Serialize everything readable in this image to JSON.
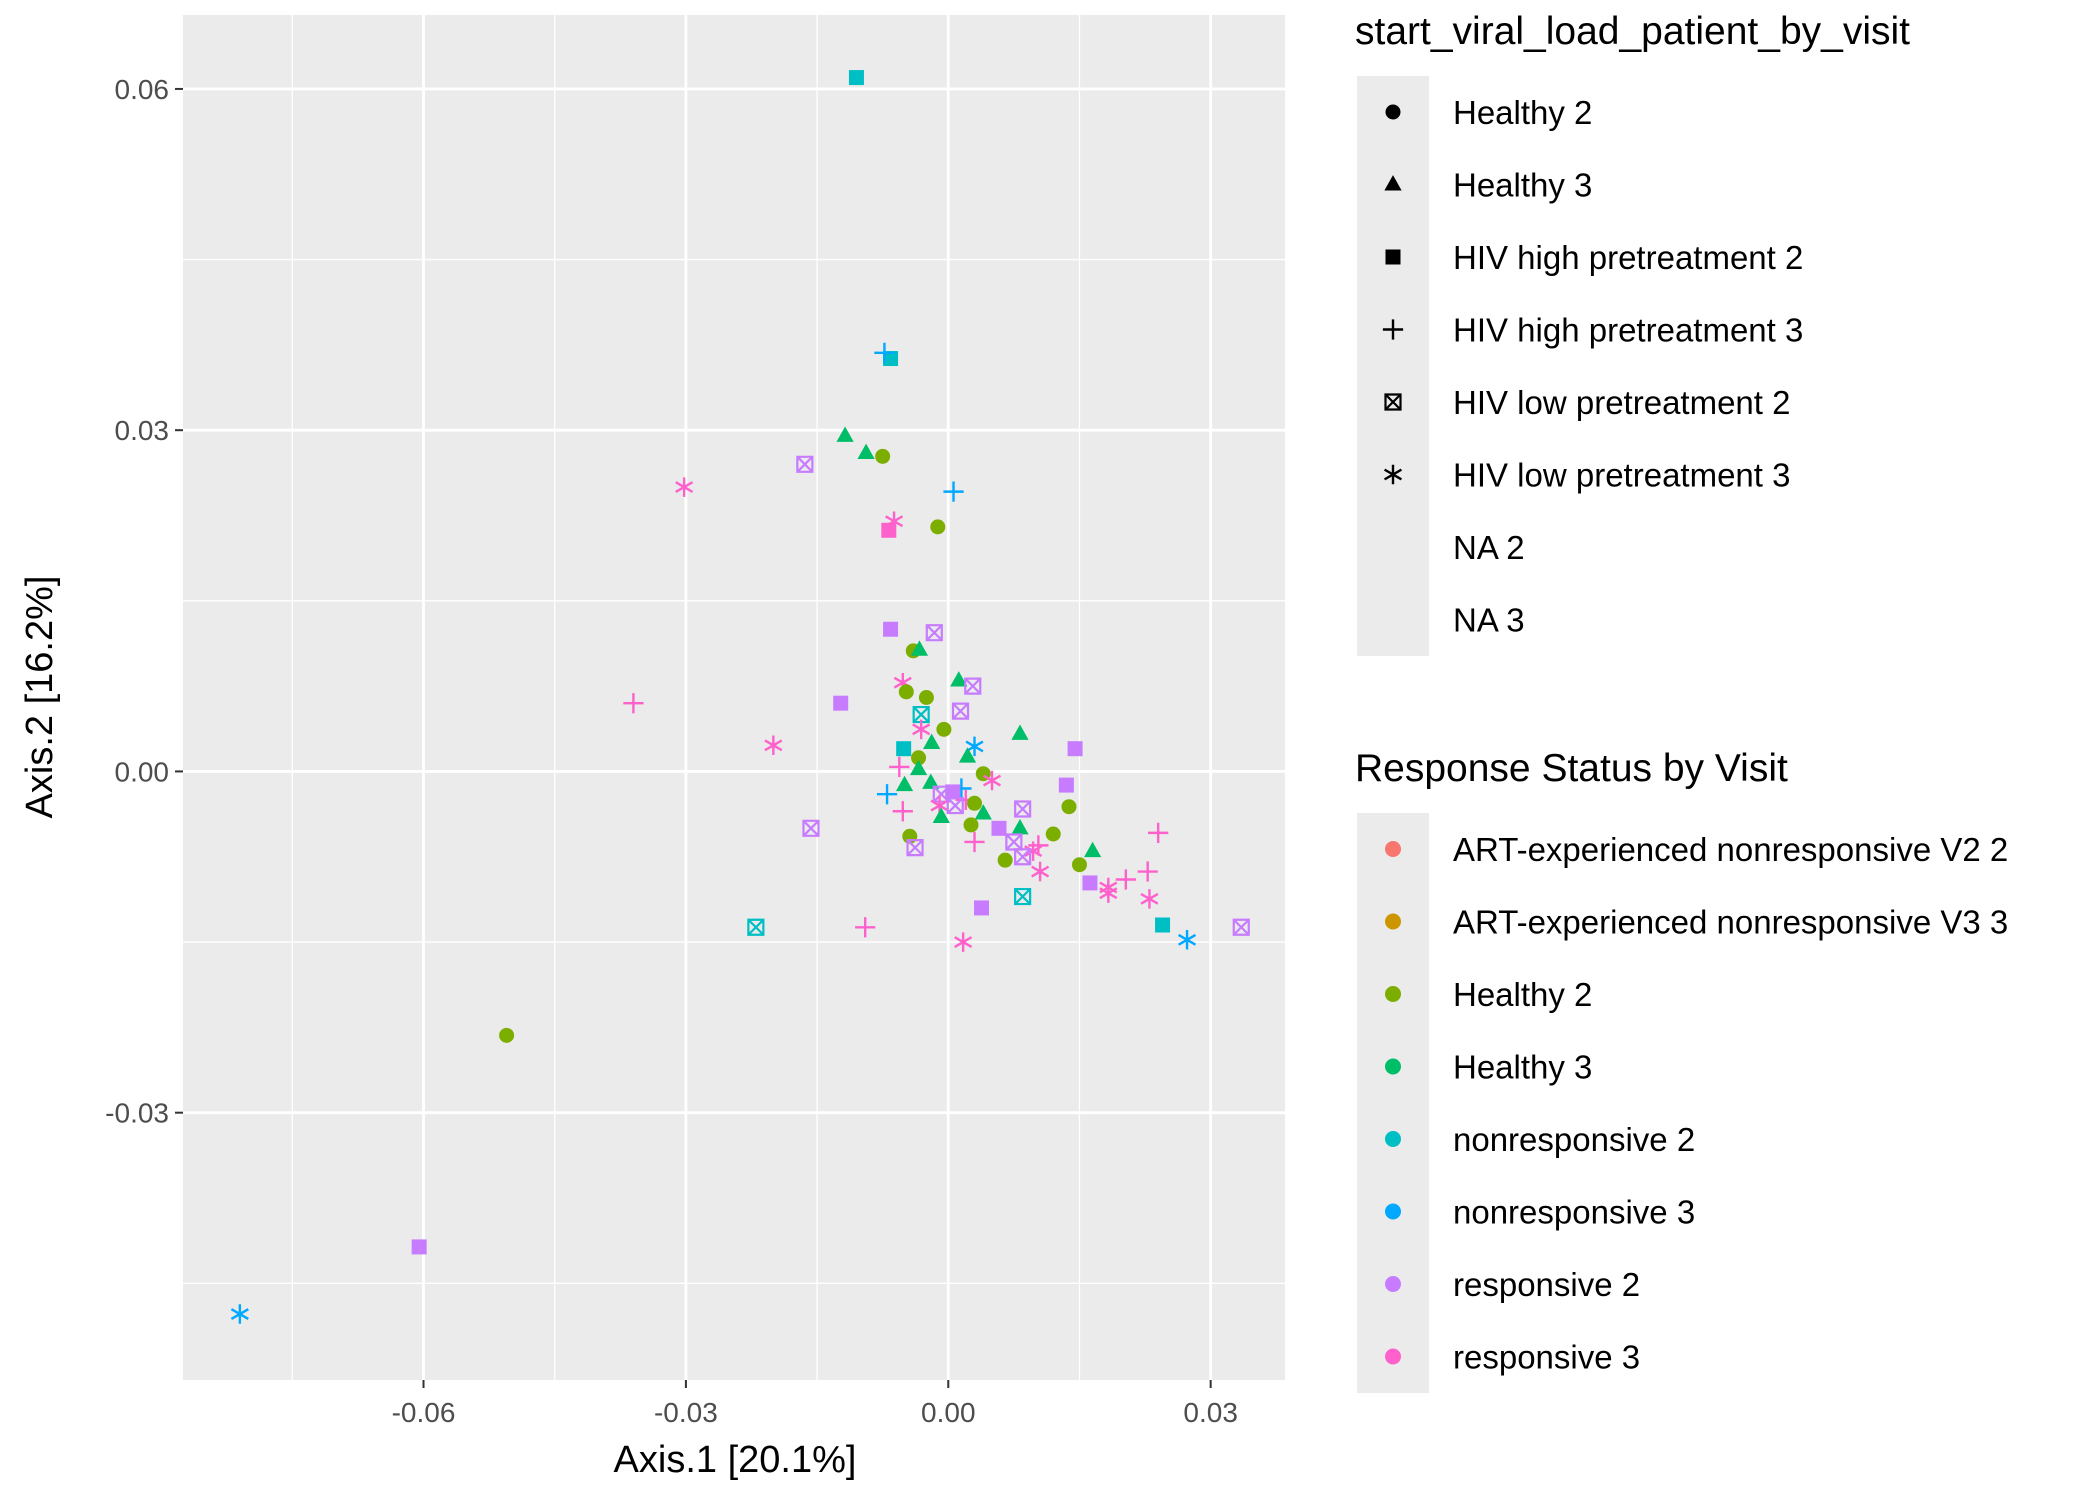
{
  "chart_data": {
    "type": "scatter",
    "title": "",
    "xlabel": "Axis.1   [20.1%]",
    "ylabel": "Axis.2   [16.2%]",
    "xlim": [
      -0.0875,
      0.0385
    ],
    "ylim": [
      -0.0535,
      0.0665
    ],
    "x_ticks": [
      -0.06,
      -0.03,
      0.0,
      0.03
    ],
    "x_tick_labels": [
      "-0.06",
      "-0.03",
      "0.00",
      "0.03"
    ],
    "y_ticks": [
      0.06,
      0.03,
      0.0,
      -0.03
    ],
    "y_tick_labels": [
      "0.06",
      "0.03",
      "0.00",
      "-0.03"
    ],
    "grid": true,
    "legend_placement": "right",
    "colors": {
      "ART-experienced nonresponsive V2 2": "#F8766D",
      "ART-experienced nonresponsive V3 3": "#CD9600",
      "Healthy 2": "#7CAE00",
      "Healthy 3": "#00BE67",
      "nonresponsive 2": "#00BFC4",
      "nonresponsive 3": "#00A9FF",
      "responsive 2": "#C77CFF",
      "responsive 3": "#FF61CC"
    },
    "shape_legend": {
      "title": "start_viral_load_patient_by_visit",
      "items": [
        {
          "label": "Healthy 2",
          "shape": "circle"
        },
        {
          "label": "Healthy 3",
          "shape": "triangle"
        },
        {
          "label": "HIV high pretreatment 2",
          "shape": "square"
        },
        {
          "label": "HIV high pretreatment 3",
          "shape": "plus"
        },
        {
          "label": "HIV low pretreatment 2",
          "shape": "boxx"
        },
        {
          "label": "HIV low pretreatment 3",
          "shape": "star"
        },
        {
          "label": "NA 2",
          "shape": "none"
        },
        {
          "label": "NA 3",
          "shape": "none"
        }
      ]
    },
    "color_legend": {
      "title": "Response Status by Visit",
      "items": [
        "ART-experienced nonresponsive V2 2",
        "ART-experienced nonresponsive V3 3",
        "Healthy 2",
        "Healthy 3",
        "nonresponsive 2",
        "nonresponsive 3",
        "responsive 2",
        "responsive 3"
      ]
    },
    "points": [
      {
        "x": -0.0105,
        "y": 0.061,
        "shape": "square",
        "group": "nonresponsive 2"
      },
      {
        "x": -0.0066,
        "y": 0.0363,
        "shape": "square",
        "group": "nonresponsive 2"
      },
      {
        "x": -0.0073,
        "y": 0.0368,
        "shape": "plus",
        "group": "nonresponsive 3"
      },
      {
        "x": 0.0006,
        "y": 0.0246,
        "shape": "plus",
        "group": "nonresponsive 3"
      },
      {
        "x": -0.0118,
        "y": 0.0295,
        "shape": "triangle",
        "group": "Healthy 3"
      },
      {
        "x": -0.0094,
        "y": 0.028,
        "shape": "triangle",
        "group": "Healthy 3"
      },
      {
        "x": -0.0075,
        "y": 0.0277,
        "shape": "circle",
        "group": "Healthy 2"
      },
      {
        "x": -0.0012,
        "y": 0.0215,
        "shape": "circle",
        "group": "Healthy 2"
      },
      {
        "x": -0.0164,
        "y": 0.027,
        "shape": "boxx",
        "group": "responsive 2"
      },
      {
        "x": -0.0302,
        "y": 0.025,
        "shape": "star",
        "group": "responsive 3"
      },
      {
        "x": -0.0062,
        "y": 0.022,
        "shape": "star",
        "group": "responsive 3"
      },
      {
        "x": -0.0068,
        "y": 0.0212,
        "shape": "square",
        "group": "responsive 3"
      },
      {
        "x": -0.0066,
        "y": 0.0125,
        "shape": "square",
        "group": "responsive 2"
      },
      {
        "x": -0.0016,
        "y": 0.0122,
        "shape": "boxx",
        "group": "responsive 2"
      },
      {
        "x": -0.004,
        "y": 0.0106,
        "shape": "circle",
        "group": "Healthy 2"
      },
      {
        "x": -0.0033,
        "y": 0.0107,
        "shape": "triangle",
        "group": "Healthy 3"
      },
      {
        "x": 0.0012,
        "y": 0.008,
        "shape": "triangle",
        "group": "Healthy 3"
      },
      {
        "x": 0.0028,
        "y": 0.0075,
        "shape": "boxx",
        "group": "responsive 2"
      },
      {
        "x": -0.0052,
        "y": 0.0078,
        "shape": "star",
        "group": "responsive 3"
      },
      {
        "x": -0.0048,
        "y": 0.007,
        "shape": "circle",
        "group": "Healthy 2"
      },
      {
        "x": -0.0025,
        "y": 0.0065,
        "shape": "circle",
        "group": "Healthy 2"
      },
      {
        "x": -0.0123,
        "y": 0.006,
        "shape": "square",
        "group": "responsive 2"
      },
      {
        "x": -0.036,
        "y": 0.006,
        "shape": "plus",
        "group": "responsive 3"
      },
      {
        "x": 0.0014,
        "y": 0.0053,
        "shape": "boxx",
        "group": "responsive 2"
      },
      {
        "x": -0.0031,
        "y": 0.005,
        "shape": "boxx",
        "group": "nonresponsive 2"
      },
      {
        "x": -0.0031,
        "y": 0.0037,
        "shape": "star",
        "group": "responsive 3"
      },
      {
        "x": -0.0005,
        "y": 0.0037,
        "shape": "circle",
        "group": "Healthy 2"
      },
      {
        "x": 0.0082,
        "y": 0.0033,
        "shape": "triangle",
        "group": "Healthy 3"
      },
      {
        "x": -0.0019,
        "y": 0.0025,
        "shape": "triangle",
        "group": "Healthy 3"
      },
      {
        "x": -0.0051,
        "y": 0.002,
        "shape": "square",
        "group": "nonresponsive 2"
      },
      {
        "x": -0.02,
        "y": 0.0023,
        "shape": "star",
        "group": "responsive 3"
      },
      {
        "x": 0.003,
        "y": 0.0022,
        "shape": "star",
        "group": "nonresponsive 3"
      },
      {
        "x": 0.0145,
        "y": 0.002,
        "shape": "square",
        "group": "responsive 2"
      },
      {
        "x": 0.0022,
        "y": 0.0013,
        "shape": "triangle",
        "group": "Healthy 3"
      },
      {
        "x": -0.0034,
        "y": 0.0012,
        "shape": "circle",
        "group": "Healthy 2"
      },
      {
        "x": -0.0056,
        "y": 0.0004,
        "shape": "plus",
        "group": "responsive 3"
      },
      {
        "x": -0.0034,
        "y": 0.0002,
        "shape": "triangle",
        "group": "Healthy 3"
      },
      {
        "x": 0.004,
        "y": -0.0002,
        "shape": "circle",
        "group": "Healthy 2"
      },
      {
        "x": 0.005,
        "y": -0.0008,
        "shape": "star",
        "group": "responsive 3"
      },
      {
        "x": 0.0135,
        "y": -0.0012,
        "shape": "square",
        "group": "responsive 2"
      },
      {
        "x": -0.002,
        "y": -0.001,
        "shape": "triangle",
        "group": "Healthy 3"
      },
      {
        "x": -0.005,
        "y": -0.0012,
        "shape": "triangle",
        "group": "Healthy 3"
      },
      {
        "x": -0.007,
        "y": -0.002,
        "shape": "plus",
        "group": "nonresponsive 3"
      },
      {
        "x": 0.0015,
        "y": -0.0015,
        "shape": "plus",
        "group": "nonresponsive 3"
      },
      {
        "x": 0.0005,
        "y": -0.0018,
        "shape": "square",
        "group": "responsive 2"
      },
      {
        "x": -0.0008,
        "y": -0.002,
        "shape": "boxx",
        "group": "responsive 2"
      },
      {
        "x": 0.002,
        "y": -0.0025,
        "shape": "plus",
        "group": "responsive 3"
      },
      {
        "x": -0.001,
        "y": -0.003,
        "shape": "star",
        "group": "responsive 3"
      },
      {
        "x": 0.003,
        "y": -0.0028,
        "shape": "circle",
        "group": "Healthy 2"
      },
      {
        "x": 0.0008,
        "y": -0.003,
        "shape": "boxx",
        "group": "responsive 2"
      },
      {
        "x": 0.0085,
        "y": -0.0033,
        "shape": "boxx",
        "group": "responsive 2"
      },
      {
        "x": 0.0138,
        "y": -0.0031,
        "shape": "circle",
        "group": "Healthy 2"
      },
      {
        "x": -0.0052,
        "y": -0.0035,
        "shape": "plus",
        "group": "responsive 3"
      },
      {
        "x": -0.0008,
        "y": -0.004,
        "shape": "triangle",
        "group": "Healthy 3"
      },
      {
        "x": 0.004,
        "y": -0.0037,
        "shape": "triangle",
        "group": "Healthy 3"
      },
      {
        "x": -0.0157,
        "y": -0.005,
        "shape": "boxx",
        "group": "responsive 2"
      },
      {
        "x": 0.0058,
        "y": -0.005,
        "shape": "square",
        "group": "responsive 2"
      },
      {
        "x": 0.0026,
        "y": -0.0047,
        "shape": "circle",
        "group": "Healthy 2"
      },
      {
        "x": 0.0082,
        "y": -0.005,
        "shape": "triangle",
        "group": "Healthy 3"
      },
      {
        "x": 0.012,
        "y": -0.0055,
        "shape": "circle",
        "group": "Healthy 2"
      },
      {
        "x": 0.024,
        "y": -0.0054,
        "shape": "plus",
        "group": "responsive 3"
      },
      {
        "x": -0.0044,
        "y": -0.0057,
        "shape": "circle",
        "group": "Healthy 2"
      },
      {
        "x": 0.003,
        "y": -0.0062,
        "shape": "plus",
        "group": "responsive 3"
      },
      {
        "x": 0.0075,
        "y": -0.0062,
        "shape": "boxx",
        "group": "responsive 2"
      },
      {
        "x": 0.0103,
        "y": -0.0065,
        "shape": "plus",
        "group": "responsive 3"
      },
      {
        "x": -0.0038,
        "y": -0.0067,
        "shape": "boxx",
        "group": "responsive 2"
      },
      {
        "x": 0.0165,
        "y": -0.007,
        "shape": "triangle",
        "group": "Healthy 3"
      },
      {
        "x": 0.0097,
        "y": -0.007,
        "shape": "star",
        "group": "responsive 3"
      },
      {
        "x": 0.0085,
        "y": -0.0075,
        "shape": "boxx",
        "group": "responsive 2"
      },
      {
        "x": 0.0065,
        "y": -0.0078,
        "shape": "circle",
        "group": "Healthy 2"
      },
      {
        "x": 0.015,
        "y": -0.0082,
        "shape": "circle",
        "group": "Healthy 2"
      },
      {
        "x": 0.0105,
        "y": -0.0088,
        "shape": "star",
        "group": "responsive 3"
      },
      {
        "x": 0.0228,
        "y": -0.0088,
        "shape": "plus",
        "group": "responsive 3"
      },
      {
        "x": 0.0203,
        "y": -0.0095,
        "shape": "plus",
        "group": "responsive 3"
      },
      {
        "x": 0.0162,
        "y": -0.0098,
        "shape": "square",
        "group": "responsive 2"
      },
      {
        "x": 0.0183,
        "y": -0.0102,
        "shape": "star",
        "group": "responsive 3"
      },
      {
        "x": 0.0183,
        "y": -0.0107,
        "shape": "star",
        "group": "responsive 3"
      },
      {
        "x": 0.0085,
        "y": -0.011,
        "shape": "boxx",
        "group": "nonresponsive 2"
      },
      {
        "x": 0.023,
        "y": -0.0112,
        "shape": "star",
        "group": "responsive 3"
      },
      {
        "x": 0.0038,
        "y": -0.012,
        "shape": "square",
        "group": "responsive 2"
      },
      {
        "x": -0.022,
        "y": -0.0137,
        "shape": "boxx",
        "group": "nonresponsive 2"
      },
      {
        "x": -0.0095,
        "y": -0.0137,
        "shape": "plus",
        "group": "responsive 3"
      },
      {
        "x": 0.0245,
        "y": -0.0135,
        "shape": "square",
        "group": "nonresponsive 2"
      },
      {
        "x": 0.0335,
        "y": -0.0137,
        "shape": "boxx",
        "group": "responsive 2"
      },
      {
        "x": 0.0273,
        "y": -0.0148,
        "shape": "star",
        "group": "nonresponsive 3"
      },
      {
        "x": 0.0017,
        "y": -0.015,
        "shape": "star",
        "group": "responsive 3"
      },
      {
        "x": -0.0505,
        "y": -0.0232,
        "shape": "circle",
        "group": "Healthy 2"
      },
      {
        "x": -0.0605,
        "y": -0.0418,
        "shape": "square",
        "group": "responsive 2"
      },
      {
        "x": -0.081,
        "y": -0.0477,
        "shape": "star",
        "group": "nonresponsive 3"
      }
    ]
  }
}
